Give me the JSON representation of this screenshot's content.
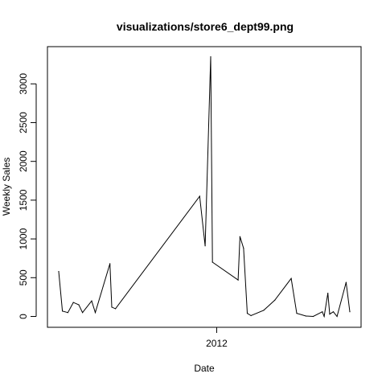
{
  "chart_data": {
    "type": "line",
    "title": "visualizations/store6_dept99.png",
    "xlabel": "Date",
    "ylabel": "Weekly Sales",
    "x_ticks": [
      "2012"
    ],
    "y_ticks": [
      "0",
      "500",
      "1000",
      "1500",
      "2000",
      "2500",
      "3000"
    ],
    "ylim": [
      -140,
      3480
    ],
    "grid": false,
    "series": [
      {
        "values": [
          [
            "2010-05-07",
            580
          ],
          [
            "2010-05-21",
            70
          ],
          [
            "2010-06-11",
            50
          ],
          [
            "2010-07-02",
            180
          ],
          [
            "2010-07-23",
            150
          ],
          [
            "2010-08-06",
            50
          ],
          [
            "2010-09-10",
            200
          ],
          [
            "2010-09-24",
            50
          ],
          [
            "2010-11-19",
            680
          ],
          [
            "2010-11-26",
            120
          ],
          [
            "2010-12-10",
            100
          ],
          [
            "2011-10-28",
            1550
          ],
          [
            "2011-11-18",
            910
          ],
          [
            "2011-12-09",
            3350
          ],
          [
            "2011-12-16",
            700
          ],
          [
            "2012-03-23",
            470
          ],
          [
            "2012-03-30",
            1030
          ],
          [
            "2012-04-13",
            880
          ],
          [
            "2012-04-27",
            40
          ],
          [
            "2012-05-11",
            10
          ],
          [
            "2012-06-29",
            80
          ],
          [
            "2012-08-10",
            210
          ],
          [
            "2012-10-12",
            490
          ],
          [
            "2012-11-02",
            40
          ],
          [
            "2012-12-07",
            5
          ],
          [
            "2013-01-04",
            0
          ],
          [
            "2013-02-08",
            60
          ],
          [
            "2013-02-15",
            0
          ],
          [
            "2013-03-01",
            300
          ],
          [
            "2013-03-08",
            30
          ],
          [
            "2013-03-22",
            60
          ],
          [
            "2013-04-05",
            0
          ],
          [
            "2013-05-10",
            440
          ],
          [
            "2013-05-24",
            60
          ]
        ]
      }
    ]
  }
}
